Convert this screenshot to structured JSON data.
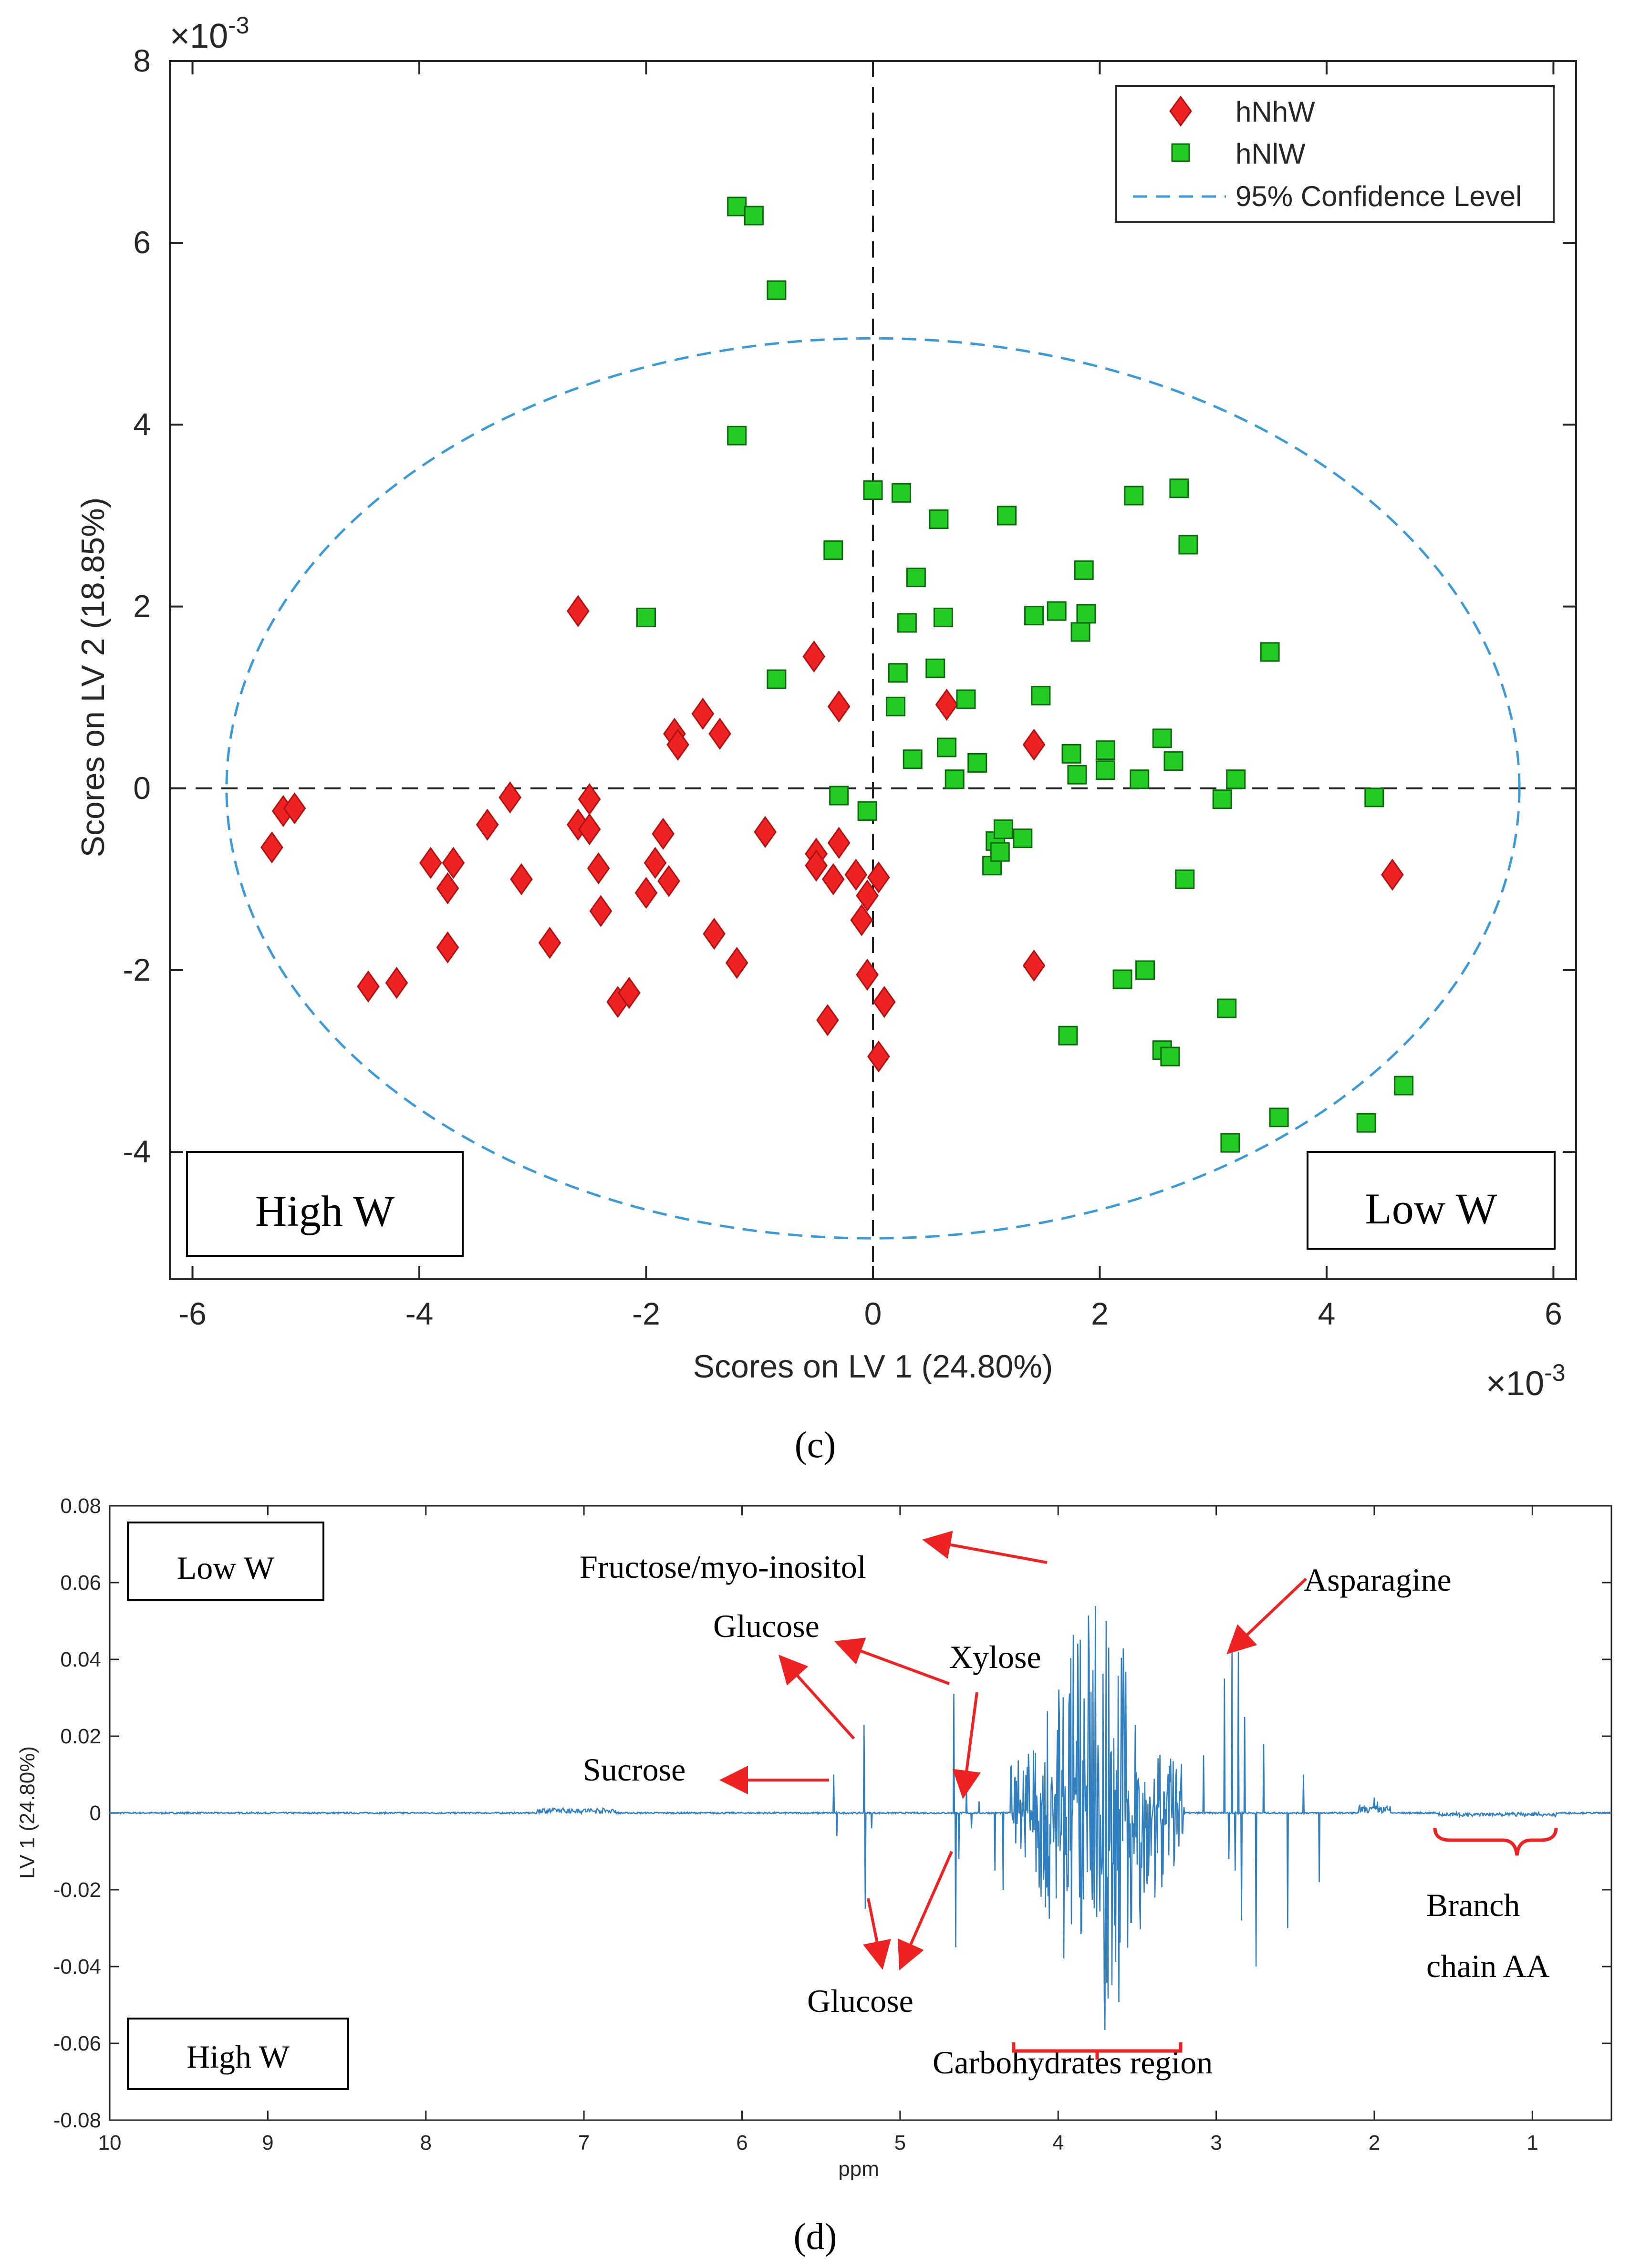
{
  "chart_data": [
    {
      "type": "scatter",
      "panel_label": "c",
      "xlabel": "Scores on LV 1 (24.80%)",
      "ylabel": "Scores on LV 2 (18.85%)",
      "xlim": [
        -6.2,
        6.2
      ],
      "ylim": [
        -5.4,
        8.0
      ],
      "xticks": [
        -6,
        -4,
        -2,
        0,
        2,
        4,
        6
      ],
      "yticks": [
        -4,
        -2,
        0,
        2,
        4,
        6,
        8
      ],
      "x_exponent": "×10",
      "x_exponent_power": "-3",
      "y_exponent": "×10",
      "y_exponent_power": "-3",
      "legend": {
        "location": "top-right",
        "entries": [
          "hNhW",
          "hNlW",
          "95% Confidence Level"
        ]
      },
      "annotations": {
        "left_box": "High W",
        "right_box": "Low W"
      },
      "ellipse": {
        "cx": 0.0,
        "cy": 0.0,
        "rx": 5.7,
        "ry": 4.95
      },
      "colors": {
        "hNhW": "#ee2222",
        "hNlW": "#22cc22",
        "ellipse": "#3c9bd6"
      },
      "series": [
        {
          "name": "hNhW",
          "marker": "diamond",
          "points": [
            [
              -5.3,
              -0.65
            ],
            [
              -5.2,
              -0.25
            ],
            [
              -5.1,
              -0.22
            ],
            [
              -4.45,
              -2.18
            ],
            [
              -4.2,
              -2.14
            ],
            [
              -3.9,
              -0.82
            ],
            [
              -3.75,
              -1.1
            ],
            [
              -3.75,
              -1.75
            ],
            [
              -3.7,
              -0.82
            ],
            [
              -3.4,
              -0.4
            ],
            [
              -3.2,
              -0.1
            ],
            [
              -3.1,
              -1.0
            ],
            [
              -2.85,
              -1.7
            ],
            [
              -2.6,
              -0.4
            ],
            [
              -2.6,
              1.95
            ],
            [
              -2.5,
              -0.45
            ],
            [
              -2.5,
              -0.12
            ],
            [
              -2.42,
              -0.88
            ],
            [
              -2.4,
              -1.35
            ],
            [
              -2.25,
              -2.35
            ],
            [
              -2.15,
              -2.25
            ],
            [
              -2.0,
              -1.15
            ],
            [
              -1.92,
              -0.82
            ],
            [
              -1.85,
              -0.5
            ],
            [
              -1.8,
              -1.02
            ],
            [
              -1.75,
              0.6
            ],
            [
              -1.72,
              0.48
            ],
            [
              -1.5,
              0.82
            ],
            [
              -1.4,
              -1.6
            ],
            [
              -1.35,
              0.6
            ],
            [
              -1.2,
              -1.92
            ],
            [
              -0.95,
              -0.48
            ],
            [
              -0.52,
              1.45
            ],
            [
              -0.5,
              -0.72
            ],
            [
              -0.5,
              -0.85
            ],
            [
              -0.4,
              -2.55
            ],
            [
              -0.35,
              -1.0
            ],
            [
              -0.3,
              0.9
            ],
            [
              -0.3,
              -0.6
            ],
            [
              -0.15,
              -0.95
            ],
            [
              -0.1,
              -1.45
            ],
            [
              -0.05,
              -1.18
            ],
            [
              -0.05,
              -2.05
            ],
            [
              0.05,
              -0.98
            ],
            [
              0.05,
              -2.95
            ],
            [
              0.1,
              -2.35
            ],
            [
              0.65,
              0.92
            ],
            [
              1.42,
              0.48
            ],
            [
              1.42,
              -1.95
            ],
            [
              4.58,
              -0.95
            ]
          ]
        },
        {
          "name": "hNlW",
          "marker": "square",
          "points": [
            [
              -1.2,
              6.4
            ],
            [
              -1.05,
              6.3
            ],
            [
              -0.85,
              5.48
            ],
            [
              -1.2,
              3.88
            ],
            [
              -2.0,
              1.88
            ],
            [
              -0.85,
              1.2
            ],
            [
              -0.35,
              2.62
            ],
            [
              -0.3,
              -0.08
            ],
            [
              0.0,
              3.28
            ],
            [
              -0.05,
              -0.25
            ],
            [
              0.2,
              0.9
            ],
            [
              0.22,
              1.27
            ],
            [
              0.25,
              3.25
            ],
            [
              0.3,
              1.82
            ],
            [
              0.35,
              0.32
            ],
            [
              0.38,
              2.32
            ],
            [
              0.55,
              1.32
            ],
            [
              0.58,
              2.96
            ],
            [
              0.62,
              1.88
            ],
            [
              0.65,
              0.45
            ],
            [
              0.72,
              0.1
            ],
            [
              0.82,
              0.98
            ],
            [
              0.92,
              0.28
            ],
            [
              1.05,
              -0.85
            ],
            [
              1.08,
              -0.58
            ],
            [
              1.12,
              -0.7
            ],
            [
              1.15,
              -0.45
            ],
            [
              1.18,
              3.0
            ],
            [
              1.32,
              -0.55
            ],
            [
              1.42,
              1.9
            ],
            [
              1.48,
              1.02
            ],
            [
              1.62,
              1.95
            ],
            [
              1.72,
              -2.72
            ],
            [
              1.75,
              0.38
            ],
            [
              1.8,
              0.15
            ],
            [
              1.83,
              1.72
            ],
            [
              1.86,
              2.4
            ],
            [
              1.88,
              1.92
            ],
            [
              2.05,
              0.42
            ],
            [
              2.05,
              0.2
            ],
            [
              2.2,
              -2.1
            ],
            [
              2.3,
              3.22
            ],
            [
              2.35,
              0.1
            ],
            [
              2.4,
              -2.0
            ],
            [
              2.55,
              0.55
            ],
            [
              2.55,
              -2.88
            ],
            [
              2.62,
              -2.95
            ],
            [
              2.65,
              0.3
            ],
            [
              2.7,
              3.3
            ],
            [
              2.75,
              -1.0
            ],
            [
              2.78,
              2.68
            ],
            [
              3.08,
              -0.12
            ],
            [
              3.12,
              -2.42
            ],
            [
              3.15,
              -3.9
            ],
            [
              3.2,
              0.1
            ],
            [
              3.5,
              1.5
            ],
            [
              3.58,
              -3.62
            ],
            [
              4.35,
              -3.68
            ],
            [
              4.42,
              -0.1
            ],
            [
              4.68,
              -3.27
            ]
          ]
        }
      ]
    },
    {
      "type": "line",
      "panel_label": "d",
      "xlabel": "ppm",
      "ylabel": "LV 1 (24.80%)",
      "xlim": [
        10,
        0.5
      ],
      "ylim": [
        -0.08,
        0.08
      ],
      "xticks": [
        10,
        9,
        8,
        7,
        6,
        5,
        4,
        3,
        2,
        1
      ],
      "yticks": [
        0.08,
        0.06,
        0.04,
        0.02,
        0,
        -0.02,
        -0.04,
        -0.06,
        -0.08
      ],
      "ytick_labels": [
        "0.08",
        "0.06",
        "0.04",
        "0.02",
        "0",
        "-0.02",
        "-0.04",
        "-0.06",
        "-0.08"
      ],
      "colors": {
        "line": "#2f7fc1",
        "arrow": "#ee2222"
      },
      "boxes": {
        "top_left": "Low W",
        "bottom_left": "High W"
      },
      "annotations": {
        "fructose": "Fructose/myo-inositol",
        "glucose_top": "Glucose",
        "xylose": "Xylose",
        "asparagine": "Asparagine",
        "sucrose": "Sucrose",
        "glucose_bottom": "Glucose",
        "carbohydrates": "Carbohydrates region",
        "branch_line1": "Branch",
        "branch_line2": "chain AA"
      },
      "peaks": [
        [
          5.42,
          0.01
        ],
        [
          5.4,
          -0.006
        ],
        [
          5.23,
          0.023
        ],
        [
          5.22,
          -0.025
        ],
        [
          5.18,
          -0.004
        ],
        [
          4.66,
          0.031
        ],
        [
          4.65,
          -0.035
        ],
        [
          4.63,
          -0.012
        ],
        [
          4.58,
          0.006
        ],
        [
          4.55,
          -0.004
        ],
        [
          4.5,
          0.003
        ],
        [
          4.4,
          -0.015
        ],
        [
          4.35,
          -0.02
        ],
        [
          4.3,
          0.012
        ],
        [
          4.25,
          -0.03
        ],
        [
          3.08,
          0.015
        ],
        [
          2.95,
          0.035
        ],
        [
          2.92,
          -0.012
        ],
        [
          2.9,
          0.045
        ],
        [
          2.88,
          -0.015
        ],
        [
          2.86,
          0.042
        ],
        [
          2.84,
          -0.028
        ],
        [
          2.82,
          0.025
        ],
        [
          2.75,
          -0.04
        ],
        [
          2.7,
          0.018
        ],
        [
          2.55,
          -0.03
        ],
        [
          2.45,
          0.01
        ],
        [
          2.35,
          -0.018
        ],
        [
          2.0,
          0.004
        ],
        [
          1.98,
          0.003
        ]
      ],
      "carb_region": [
        3.2,
        4.3
      ]
    }
  ],
  "captions": {
    "panel_c": "(c)",
    "panel_d": "(d)"
  }
}
